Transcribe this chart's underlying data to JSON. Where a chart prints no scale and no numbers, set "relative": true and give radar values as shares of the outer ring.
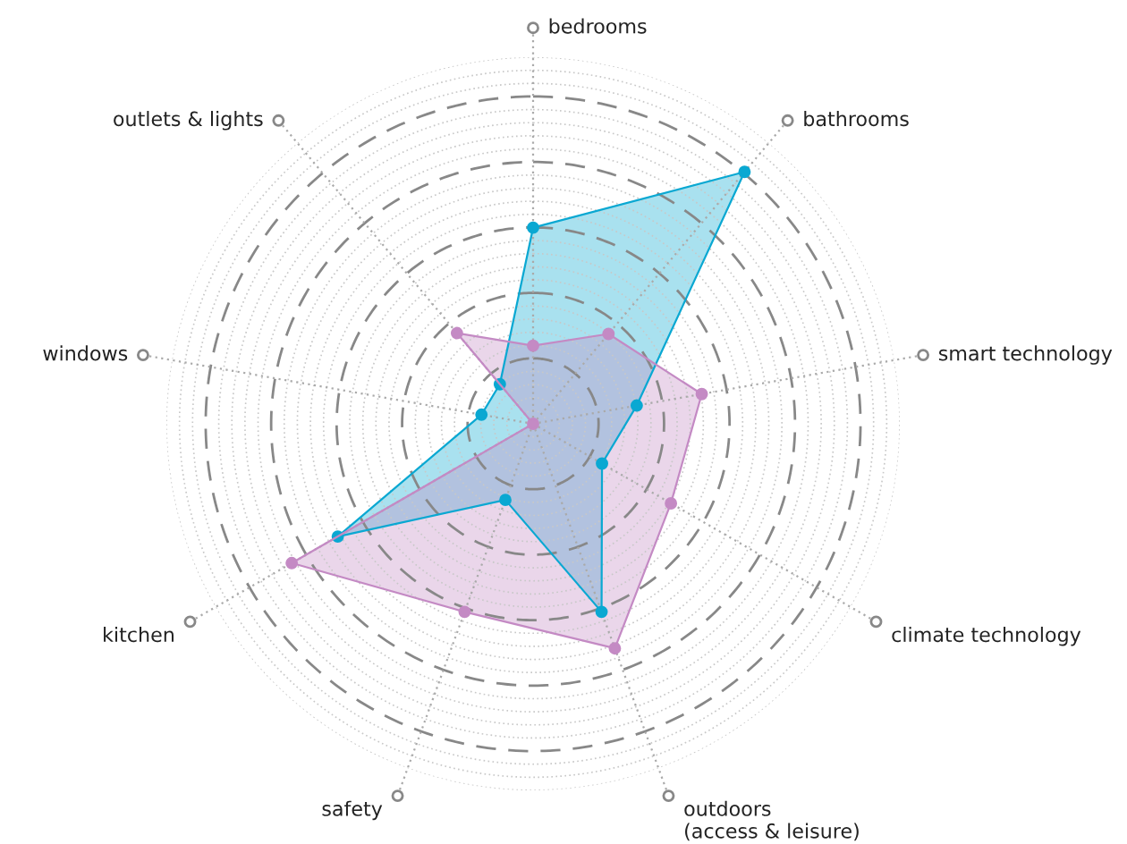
{
  "chart_data": {
    "type": "radar",
    "relative": true,
    "grid": true,
    "marker": "circle",
    "categories": [
      "bedrooms",
      "bathrooms",
      "smart technology",
      "climate technology",
      "outdoors\n(access & leisure)",
      "safety",
      "kitchen",
      "windows",
      "outlets & lights"
    ],
    "series": [
      {
        "color": "#0aa8d2",
        "values": [
          0.535,
          0.897,
          0.287,
          0.217,
          0.546,
          0.221,
          0.615,
          0.143,
          0.141
        ]
      },
      {
        "color": "#c48ac4",
        "values": [
          0.213,
          0.32,
          0.467,
          0.434,
          0.652,
          0.546,
          0.76,
          0.0,
          0.323
        ]
      }
    ]
  }
}
